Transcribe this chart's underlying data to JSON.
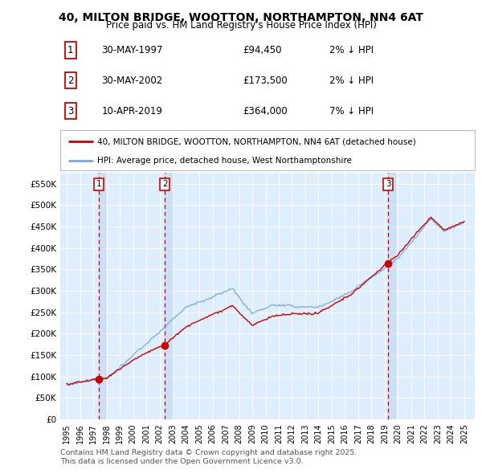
{
  "title": "40, MILTON BRIDGE, WOOTTON, NORTHAMPTON, NN4 6AT",
  "subtitle": "Price paid vs. HM Land Registry's House Price Index (HPI)",
  "legend_line1": "40, MILTON BRIDGE, WOOTTON, NORTHAMPTON, NN4 6AT (detached house)",
  "legend_line2": "HPI: Average price, detached house, West Northamptonshire",
  "footer": "Contains HM Land Registry data © Crown copyright and database right 2025.\nThis data is licensed under the Open Government Licence v3.0.",
  "transactions": [
    {
      "num": 1,
      "date": "30-MAY-1997",
      "price": 94450,
      "pct": "2%",
      "x_year": 1997.41
    },
    {
      "num": 2,
      "date": "30-MAY-2002",
      "price": 173500,
      "pct": "2%",
      "x_year": 2002.41
    },
    {
      "num": 3,
      "date": "10-APR-2019",
      "price": 364000,
      "pct": "7%",
      "x_year": 2019.27
    }
  ],
  "ylim": [
    0,
    575000
  ],
  "xlim": [
    1994.5,
    2025.8
  ],
  "yticks": [
    0,
    50000,
    100000,
    150000,
    200000,
    250000,
    300000,
    350000,
    400000,
    450000,
    500000,
    550000
  ],
  "ytick_labels": [
    "£0",
    "£50K",
    "£100K",
    "£150K",
    "£200K",
    "£250K",
    "£300K",
    "£350K",
    "£400K",
    "£450K",
    "£500K",
    "£550K"
  ],
  "hpi_color": "#7aaadd",
  "price_color": "#cc0000",
  "plot_bg_color": "#ddeeff",
  "grid_color": "#ffffff",
  "vline_color": "#cc0000",
  "marker_box_color": "#cc0000",
  "shade_color": "#c5daf0"
}
